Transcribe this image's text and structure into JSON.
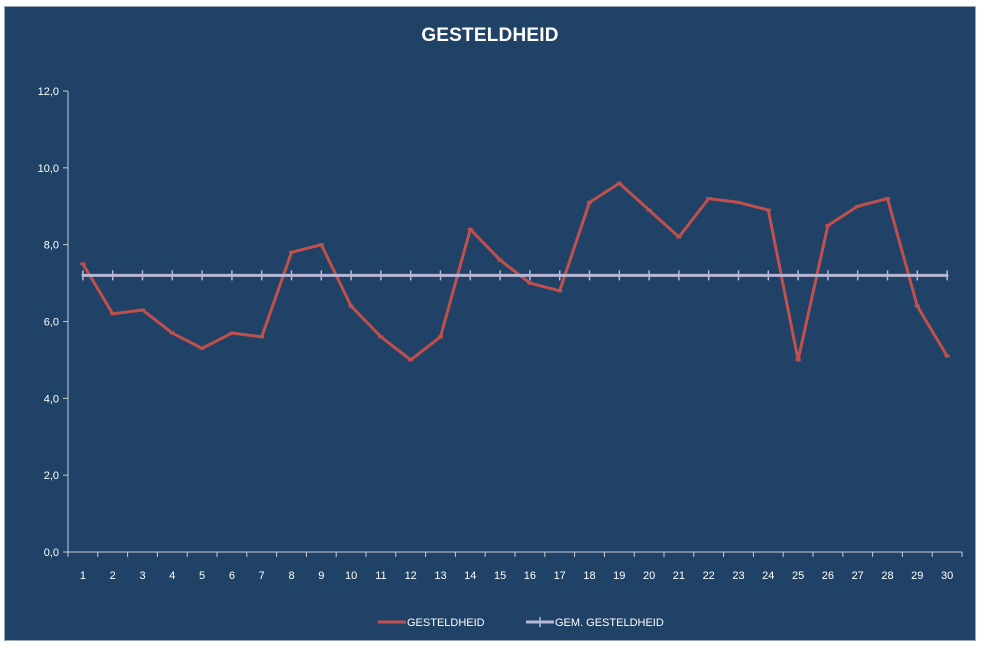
{
  "chart_data": {
    "type": "line",
    "title": "GESTELDHEID",
    "xlabel": "",
    "ylabel": "",
    "x": [
      1,
      2,
      3,
      4,
      5,
      6,
      7,
      8,
      9,
      10,
      11,
      12,
      13,
      14,
      15,
      16,
      17,
      18,
      19,
      20,
      21,
      22,
      23,
      24,
      25,
      26,
      27,
      28,
      29,
      30
    ],
    "ylim": [
      0,
      12
    ],
    "y_ticks": [
      "0,0",
      "2,0",
      "4,0",
      "6,0",
      "8,0",
      "10,0",
      "12,0"
    ],
    "y_tick_values": [
      0,
      2,
      4,
      6,
      8,
      10,
      12
    ],
    "grid": false,
    "legend_position": "bottom",
    "series": [
      {
        "name": "GESTELDHEID",
        "color": "#c0504d",
        "values": [
          7.5,
          6.2,
          6.3,
          5.7,
          5.3,
          5.7,
          5.6,
          7.8,
          8.0,
          6.4,
          5.6,
          5.0,
          5.6,
          8.4,
          7.6,
          7.0,
          6.8,
          9.1,
          9.6,
          8.9,
          8.2,
          9.2,
          9.1,
          8.9,
          5.0,
          8.5,
          9.0,
          9.2,
          6.4,
          5.1
        ]
      },
      {
        "name": "GEM. GESTELDHEID",
        "color": "#b9b7d6",
        "values": [
          7.2,
          7.2,
          7.2,
          7.2,
          7.2,
          7.2,
          7.2,
          7.2,
          7.2,
          7.2,
          7.2,
          7.2,
          7.2,
          7.2,
          7.2,
          7.2,
          7.2,
          7.2,
          7.2,
          7.2,
          7.2,
          7.2,
          7.2,
          7.2,
          7.2,
          7.2,
          7.2,
          7.2,
          7.2,
          7.2
        ]
      }
    ]
  },
  "colors": {
    "background": "#1f4266",
    "axis": "#c7cdd4",
    "text": "#ffffff"
  }
}
